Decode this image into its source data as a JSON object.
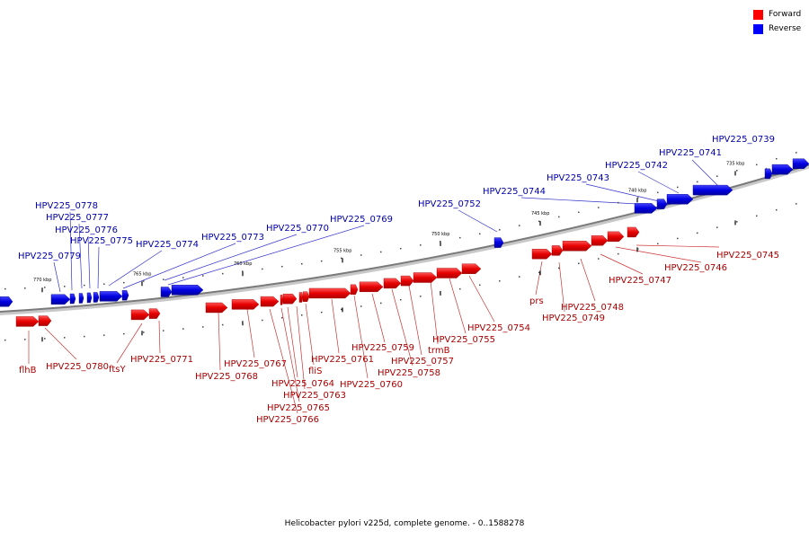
{
  "legend": [
    {
      "label": "Forward",
      "color": "#ff0000"
    },
    {
      "label": "Reverse",
      "color": "#0000ff"
    }
  ],
  "caption": "Helicobacter pylori v225d, complete genome. - 0..1588278",
  "colors": {
    "forward": "#ff0000",
    "reverse": "#0000ff",
    "forward_label": "#aa0000",
    "reverse_label": "#0000aa",
    "backbone": "#7a7a7a"
  },
  "ticks": [
    "770 kbp",
    "765 kbp",
    "760 kbp",
    "755 kbp",
    "750 kbp",
    "745 kbp",
    "740 kbp",
    "735 kbp"
  ],
  "reverse_genes": [
    "HPV225_0739",
    "HPV225_0741",
    "HPV225_0742",
    "HPV225_0743",
    "HPV225_0744",
    "HPV225_0752",
    "HPV225_0769",
    "HPV225_0770",
    "HPV225_0773",
    "HPV225_0774",
    "HPV225_0775",
    "HPV225_0776",
    "HPV225_0777",
    "HPV225_0778",
    "HPV225_0779"
  ],
  "forward_genes": [
    "HPV225_0745",
    "HPV225_0746",
    "HPV225_0747",
    "HPV225_0748",
    "HPV225_0749",
    "prs",
    "HPV225_0754",
    "HPV225_0755",
    "trmB",
    "HPV225_0757",
    "HPV225_0758",
    "HPV225_0759",
    "HPV225_0760",
    "HPV225_0761",
    "fliS",
    "HPV225_0763",
    "HPV225_0764",
    "HPV225_0765",
    "HPV225_0766",
    "HPV225_0767",
    "HPV225_0768",
    "HPV225_0771",
    "ftsY",
    "HPV225_0780",
    "flhB"
  ]
}
